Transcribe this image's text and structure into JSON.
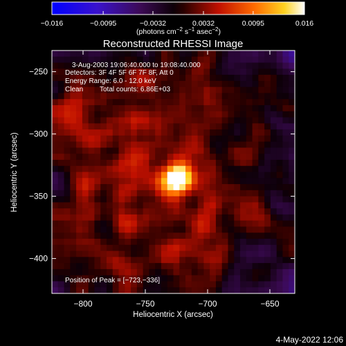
{
  "chart_data": {
    "type": "heatmap",
    "title": "Reconstructed RHESSI Image",
    "xlabel": "Heliocentric X (arcsec)",
    "ylabel": "Heliocentric Y (arcsec)",
    "xlim": [
      -825,
      -630
    ],
    "ylim": [
      -428,
      -233
    ],
    "xticks": [
      -800,
      -750,
      -700,
      -650
    ],
    "yticks": [
      -250,
      -300,
      -350,
      -400
    ],
    "xticks_labels": [
      "−800",
      "−750",
      "−700",
      "−650"
    ],
    "yticks_labels": [
      "−250",
      "−300",
      "−350",
      "−400"
    ],
    "colorbar": {
      "min": -0.016,
      "max": 0.016,
      "ticks": [
        -0.016,
        -0.0095,
        -0.0032,
        0.0032,
        0.0095,
        0.016
      ],
      "tick_labels": [
        "−0.016",
        "−0.0095",
        "−0.0032",
        "0.0032",
        "0.0095",
        "0.016"
      ],
      "unit_main": "(photons cm",
      "unit_sup1": "−2",
      "unit_mid1": " s",
      "unit_sup2": "−1",
      "unit_mid2": " asec",
      "unit_sup3": "−2",
      "unit_end": ")",
      "colormap": "blue-purple-black-red-orange-yellow-white"
    },
    "annotations": {
      "time_range": "3-Aug-2003 19:06:40.000 to 19:08:40.000",
      "detectors": "Detectors: 3F 4F 5F 6F 7F 8F, Att 0",
      "energy": "Energy Range: 6.0 - 12.0 keV",
      "clean": "Clean",
      "total_counts": "Total counts: 6.86E+03",
      "peak": "Position of Peak = [−723,−336]"
    },
    "peak_position": [
      -723,
      -336
    ],
    "grid": false
  },
  "footer": {
    "date": "4-May-2022 12:06"
  }
}
